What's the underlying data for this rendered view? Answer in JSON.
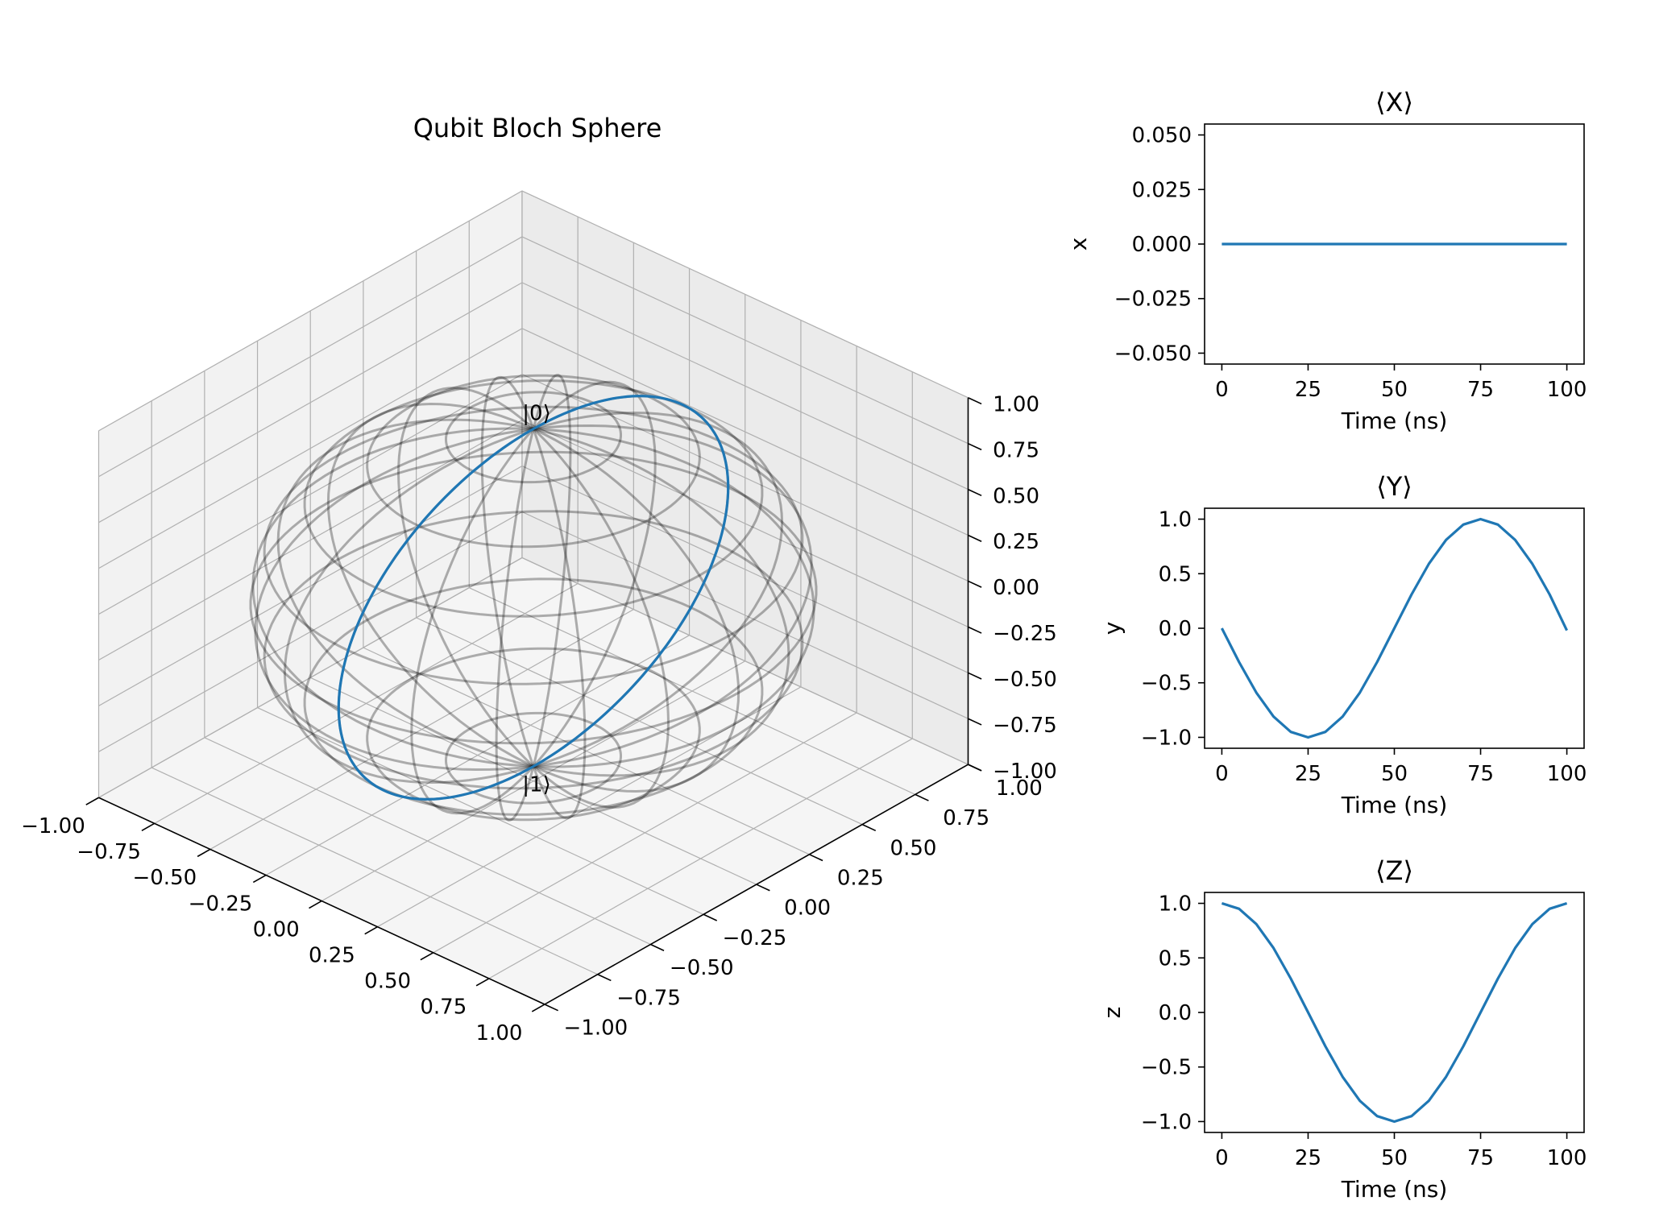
{
  "chart_data": [
    {
      "type": "line",
      "title": "Qubit Bloch Sphere",
      "projection": "3d",
      "x_ticks": [
        "−1.00",
        "−0.75",
        "−0.50",
        "−0.25",
        "0.00",
        "0.25",
        "0.50",
        "0.75",
        "1.00"
      ],
      "y_ticks": [
        "−1.00",
        "−0.75",
        "−0.50",
        "−0.25",
        "0.00",
        "0.25",
        "0.50",
        "0.75",
        "1.00"
      ],
      "z_ticks": [
        "−1.00",
        "−0.75",
        "−0.50",
        "−0.25",
        "0.00",
        "0.25",
        "0.50",
        "0.75",
        "1.00"
      ],
      "xlim": [
        -1,
        1
      ],
      "ylim": [
        -1,
        1
      ],
      "zlim": [
        -1,
        1
      ],
      "annotations": [
        {
          "text": "|0⟩",
          "x": 0,
          "y": 0,
          "z": 1.1
        },
        {
          "text": "|1⟩",
          "x": 0,
          "y": 0,
          "z": -1.1
        }
      ],
      "sphere_wireframe": {
        "color": "#000000",
        "opacity": 0.3
      },
      "trajectory": {
        "color": "#1f77b4",
        "description_points": [
          {
            "t": 0,
            "x": 0,
            "y": 0,
            "z": 1
          },
          {
            "t": 25,
            "x": 0,
            "y": -1,
            "z": 0
          },
          {
            "t": 50,
            "x": 0,
            "y": 0,
            "z": -1
          },
          {
            "t": 75,
            "x": 0,
            "y": 1,
            "z": 0
          },
          {
            "t": 100,
            "x": 0,
            "y": 0,
            "z": 1
          }
        ]
      },
      "grid": true
    },
    {
      "type": "line",
      "title": "⟨X⟩",
      "xlabel": "Time (ns)",
      "ylabel": "x",
      "xlim": [
        -5,
        105
      ],
      "ylim": [
        -0.055,
        0.055
      ],
      "x_ticks": [
        0,
        25,
        50,
        75,
        100
      ],
      "x_tick_labels": [
        "0",
        "25",
        "50",
        "75",
        "100"
      ],
      "y_ticks": [
        -0.05,
        -0.025,
        0,
        0.025,
        0.05
      ],
      "y_tick_labels": [
        "−0.050",
        "−0.025",
        "0.000",
        "0.025",
        "0.050"
      ],
      "series": [
        {
          "x": [
            0,
            25,
            50,
            75,
            100
          ],
          "values": [
            0,
            0,
            0,
            0,
            0
          ]
        }
      ],
      "color": "#1f77b4"
    },
    {
      "type": "line",
      "title": "⟨Y⟩",
      "xlabel": "Time (ns)",
      "ylabel": "y",
      "xlim": [
        -5,
        105
      ],
      "ylim": [
        -1.1,
        1.1
      ],
      "x_ticks": [
        0,
        25,
        50,
        75,
        100
      ],
      "x_tick_labels": [
        "0",
        "25",
        "50",
        "75",
        "100"
      ],
      "y_ticks": [
        -1,
        -0.5,
        0,
        0.5,
        1
      ],
      "y_tick_labels": [
        "−1.0",
        "−0.5",
        "0.0",
        "0.5",
        "1.0"
      ],
      "series": [
        {
          "x": [
            0,
            5,
            10,
            15,
            20,
            25,
            30,
            35,
            40,
            45,
            50,
            55,
            60,
            65,
            70,
            75,
            80,
            85,
            90,
            95,
            100
          ],
          "values": [
            0,
            -0.31,
            -0.59,
            -0.81,
            -0.95,
            -1.0,
            -0.95,
            -0.81,
            -0.59,
            -0.31,
            0,
            0.31,
            0.59,
            0.81,
            0.95,
            1.0,
            0.95,
            0.81,
            0.59,
            0.31,
            -0.02
          ]
        }
      ],
      "color": "#1f77b4"
    },
    {
      "type": "line",
      "title": "⟨Z⟩",
      "xlabel": "Time (ns)",
      "ylabel": "z",
      "xlim": [
        -5,
        105
      ],
      "ylim": [
        -1.1,
        1.1
      ],
      "x_ticks": [
        0,
        25,
        50,
        75,
        100
      ],
      "x_tick_labels": [
        "0",
        "25",
        "50",
        "75",
        "100"
      ],
      "y_ticks": [
        -1,
        -0.5,
        0,
        0.5,
        1
      ],
      "y_tick_labels": [
        "−1.0",
        "−0.5",
        "0.0",
        "0.5",
        "1.0"
      ],
      "series": [
        {
          "x": [
            0,
            5,
            10,
            15,
            20,
            25,
            30,
            35,
            40,
            45,
            50,
            55,
            60,
            65,
            70,
            75,
            80,
            85,
            90,
            95,
            100
          ],
          "values": [
            1.0,
            0.95,
            0.81,
            0.59,
            0.31,
            0,
            -0.31,
            -0.59,
            -0.81,
            -0.95,
            -1.0,
            -0.95,
            -0.81,
            -0.59,
            -0.31,
            0,
            0.31,
            0.59,
            0.81,
            0.95,
            1.0
          ]
        }
      ],
      "color": "#1f77b4"
    }
  ]
}
